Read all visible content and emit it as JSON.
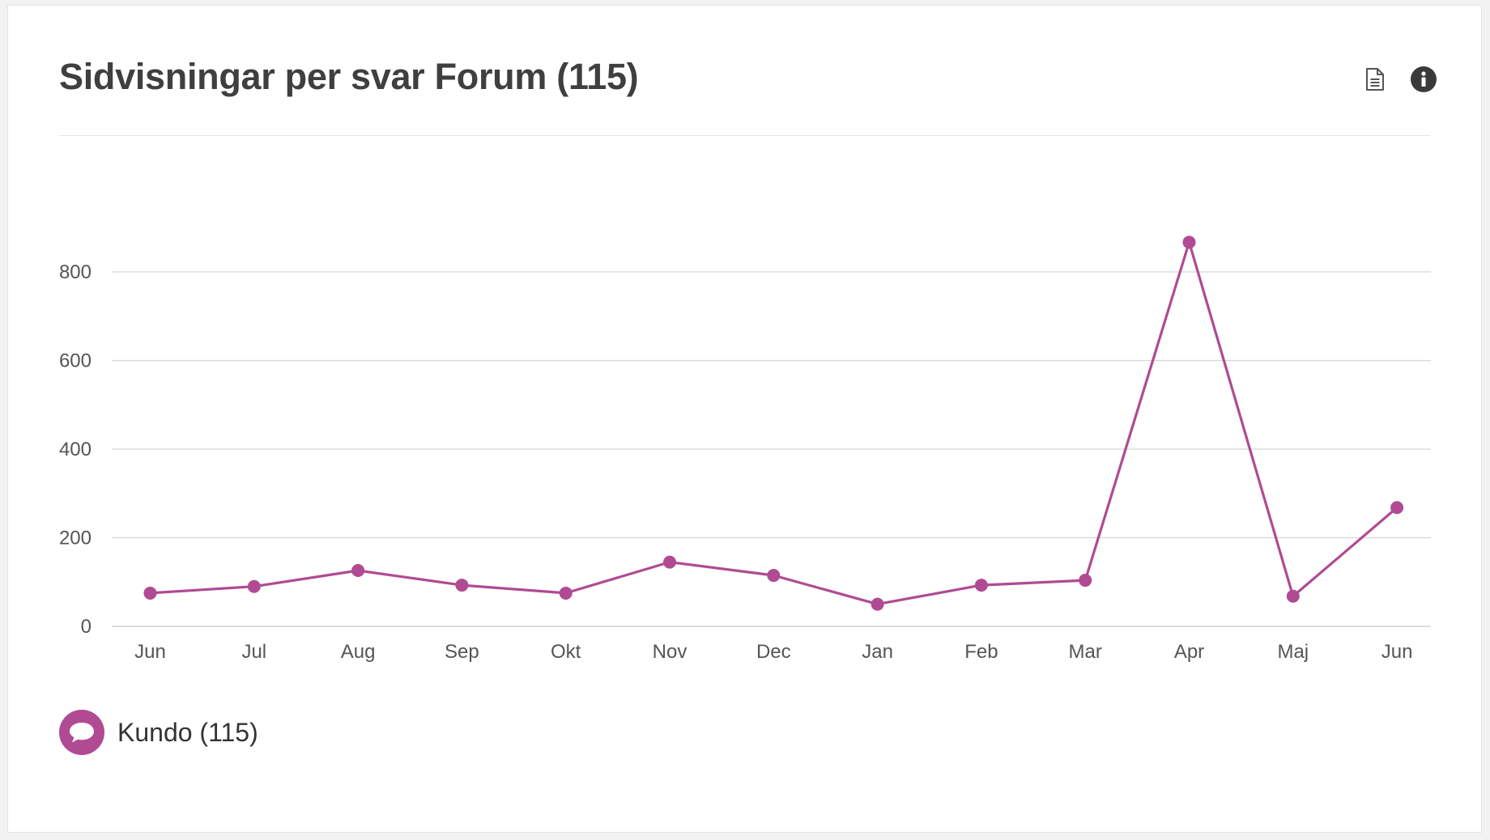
{
  "widget": {
    "title": "Sidvisningar per svar Forum (115)",
    "export_icon": "document-icon",
    "info_icon": "info-icon"
  },
  "legend": {
    "label": "Kundo (115)",
    "icon": "speech-bubble-icon",
    "color": "#b04a93"
  },
  "chart_data": {
    "type": "line",
    "categories": [
      "Jun",
      "Jul",
      "Aug",
      "Sep",
      "Okt",
      "Nov",
      "Dec",
      "Jan",
      "Feb",
      "Mar",
      "Apr",
      "Maj",
      "Jun"
    ],
    "series": [
      {
        "name": "Kundo (115)",
        "color": "#b04a93",
        "values": [
          75,
          90,
          126,
          93,
          75,
          145,
          115,
          50,
          93,
          104,
          867,
          68,
          268
        ]
      }
    ],
    "yticks": [
      0,
      200,
      400,
      600,
      800
    ],
    "ylim": [
      0,
      880
    ],
    "grid": true,
    "legend_position": "bottom-left",
    "title": "",
    "xlabel": "",
    "ylabel": ""
  }
}
